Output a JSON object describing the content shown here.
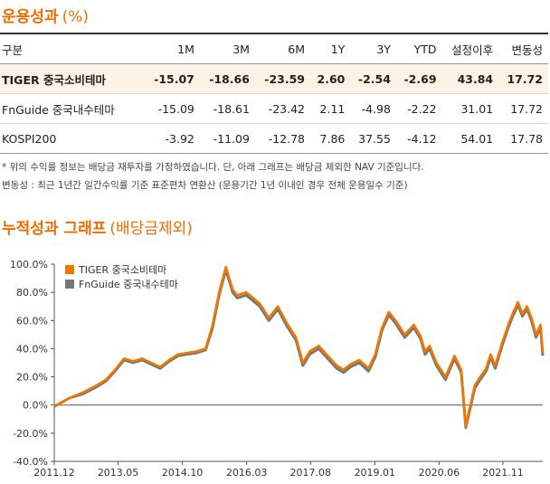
{
  "colors": {
    "accent": "#ef6c00",
    "series_main": "#f07800",
    "series_bench": "#777777",
    "highlight_row": "#fdf2e6"
  },
  "performance": {
    "title": "운용성과",
    "unit": "(%)",
    "columns": [
      "구분",
      "1M",
      "3M",
      "6M",
      "1Y",
      "3Y",
      "YTD",
      "설정이후",
      "변동성"
    ],
    "rows": [
      {
        "name": "TIGER 중국소비테마",
        "values": [
          "-15.07",
          "-18.66",
          "-23.59",
          "2.60",
          "-2.54",
          "-2.69",
          "43.84",
          "17.72"
        ]
      },
      {
        "name": "FnGuide 중국내수테마",
        "values": [
          "-15.09",
          "-18.61",
          "-23.42",
          "2.11",
          "-4.98",
          "-2.22",
          "31.01",
          "17.72"
        ]
      },
      {
        "name": "KOSPI200",
        "values": [
          "-3.92",
          "-11.09",
          "-12.78",
          "7.86",
          "37.55",
          "-4.12",
          "54.01",
          "17.78"
        ]
      }
    ]
  },
  "notes": {
    "line1": "* 위의 수익률 정보는 배당금 재투자를 가정하였습니다. 단, 아래 그래프는 배당금 제외한 NAV 기준입니다.",
    "line2": "변동성 : 최근 1년간 일간수익률 기준 표준편차 연환산 (운용기간 1년 이내인 경우 전체 운용일수 기준)"
  },
  "chart": {
    "title": "누적성과 그래프",
    "subtitle": "(배당금제외)"
  },
  "chart_data": {
    "type": "line",
    "title": "누적성과 그래프 (배당금제외)",
    "xlabel": "",
    "ylabel": "",
    "ylim": [
      -40,
      100
    ],
    "ytick_values": [
      -40,
      -20,
      0,
      20,
      40,
      60,
      80,
      100
    ],
    "ytick_labels": [
      "-40.0%",
      "-20.0%",
      "0.0%",
      "20.0%",
      "40.0%",
      "60.0%",
      "80.0%",
      "100.0%"
    ],
    "xlim": [
      2011.96,
      2022.75
    ],
    "xtick_values": [
      2011.96,
      2013.37,
      2014.79,
      2016.21,
      2017.62,
      2019.04,
      2020.46,
      2021.87
    ],
    "xtick_labels": [
      "2011.12",
      "2013.05",
      "2014.10",
      "2016.03",
      "2017.08",
      "2019.01",
      "2020.06",
      "2021.11"
    ],
    "legend_position": "top-left",
    "series": [
      {
        "name": "TIGER 중국소비테마",
        "x": [
          2011.96,
          2012.3,
          2012.6,
          2012.9,
          2013.1,
          2013.3,
          2013.5,
          2013.7,
          2013.9,
          2014.1,
          2014.3,
          2014.5,
          2014.7,
          2014.9,
          2015.1,
          2015.3,
          2015.45,
          2015.6,
          2015.75,
          2015.9,
          2016.0,
          2016.2,
          2016.35,
          2016.5,
          2016.7,
          2016.9,
          2017.1,
          2017.3,
          2017.45,
          2017.6,
          2017.8,
          2018.0,
          2018.2,
          2018.35,
          2018.5,
          2018.7,
          2018.9,
          2019.05,
          2019.2,
          2019.35,
          2019.5,
          2019.7,
          2019.9,
          2020.05,
          2020.15,
          2020.25,
          2020.4,
          2020.6,
          2020.8,
          2020.95,
          2021.05,
          2021.15,
          2021.25,
          2021.35,
          2021.5,
          2021.6,
          2021.7,
          2021.85,
          2022.0,
          2022.1,
          2022.2,
          2022.3,
          2022.4,
          2022.5,
          2022.6,
          2022.7,
          2022.75
        ],
        "y": [
          -1,
          5,
          9,
          14,
          18,
          25,
          33,
          31,
          33,
          30,
          27,
          32,
          36,
          37,
          38,
          40,
          56,
          80,
          98,
          82,
          78,
          80,
          76,
          72,
          62,
          70,
          58,
          48,
          30,
          38,
          42,
          35,
          28,
          25,
          29,
          32,
          26,
          36,
          55,
          66,
          60,
          50,
          57,
          49,
          38,
          42,
          30,
          20,
          35,
          25,
          -15,
          0,
          14,
          19,
          26,
          36,
          28,
          44,
          58,
          66,
          73,
          65,
          70,
          62,
          50,
          57,
          37
        ]
      },
      {
        "name": "FnGuide 중국내수테마",
        "x": [
          2011.96,
          2012.3,
          2012.6,
          2012.9,
          2013.1,
          2013.3,
          2013.5,
          2013.7,
          2013.9,
          2014.1,
          2014.3,
          2014.5,
          2014.7,
          2014.9,
          2015.1,
          2015.3,
          2015.45,
          2015.6,
          2015.75,
          2015.9,
          2016.0,
          2016.2,
          2016.35,
          2016.5,
          2016.7,
          2016.9,
          2017.1,
          2017.3,
          2017.45,
          2017.6,
          2017.8,
          2018.0,
          2018.2,
          2018.35,
          2018.5,
          2018.7,
          2018.9,
          2019.05,
          2019.2,
          2019.35,
          2019.5,
          2019.7,
          2019.9,
          2020.05,
          2020.15,
          2020.25,
          2020.4,
          2020.6,
          2020.8,
          2020.95,
          2021.05,
          2021.15,
          2021.25,
          2021.35,
          2021.5,
          2021.6,
          2021.7,
          2021.85,
          2022.0,
          2022.1,
          2022.2,
          2022.3,
          2022.4,
          2022.5,
          2022.6,
          2022.7,
          2022.75
        ],
        "y": [
          -1,
          5,
          8,
          13,
          17,
          24,
          32,
          30,
          32,
          29,
          26,
          31,
          35,
          36,
          37,
          39,
          54,
          78,
          96,
          80,
          76,
          78,
          74,
          70,
          60,
          68,
          56,
          46,
          28,
          36,
          40,
          33,
          26,
          23,
          27,
          30,
          24,
          34,
          53,
          64,
          58,
          48,
          55,
          47,
          36,
          40,
          28,
          18,
          33,
          23,
          -16,
          -2,
          12,
          17,
          24,
          34,
          26,
          42,
          56,
          64,
          71,
          63,
          68,
          60,
          48,
          55,
          35
        ]
      }
    ]
  }
}
